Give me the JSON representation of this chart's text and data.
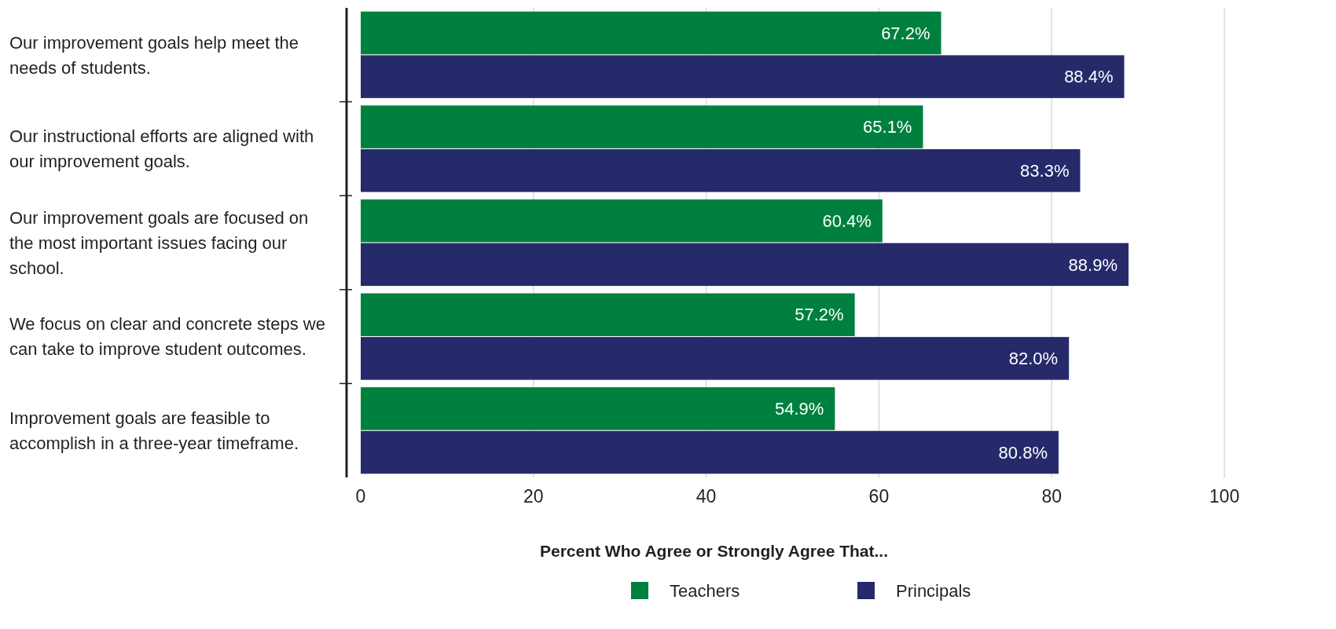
{
  "chart_data": {
    "type": "bar",
    "orientation": "horizontal",
    "xlabel": "Percent Who Agree or Strongly Agree That...",
    "categories": [
      "Our improvement goals help meet the needs of students.",
      "Our instructional efforts are aligned with our improvement goals.",
      "Our improvement goals are focused on the most important issues facing our school.",
      "We focus on clear and concrete steps we can take to improve student outcomes.",
      "Improvement goals are feasible to accomplish in a three-year timeframe."
    ],
    "series": [
      {
        "name": "Teachers",
        "color": "#00803f",
        "values": [
          67.2,
          65.1,
          60.4,
          57.2,
          54.9
        ],
        "value_labels": [
          "67.2%",
          "65.1%",
          "60.4%",
          "57.2%",
          "54.9%"
        ]
      },
      {
        "name": "Principals",
        "color": "#262a6b",
        "values": [
          88.4,
          83.3,
          88.9,
          82.0,
          80.8
        ],
        "value_labels": [
          "88.4%",
          "83.3%",
          "88.9%",
          "82.0%",
          "80.8%"
        ]
      }
    ],
    "xlim": [
      0,
      100
    ],
    "xticks": [
      0,
      20,
      40,
      60,
      80,
      100
    ],
    "grid": "x",
    "legend": "bottom"
  }
}
